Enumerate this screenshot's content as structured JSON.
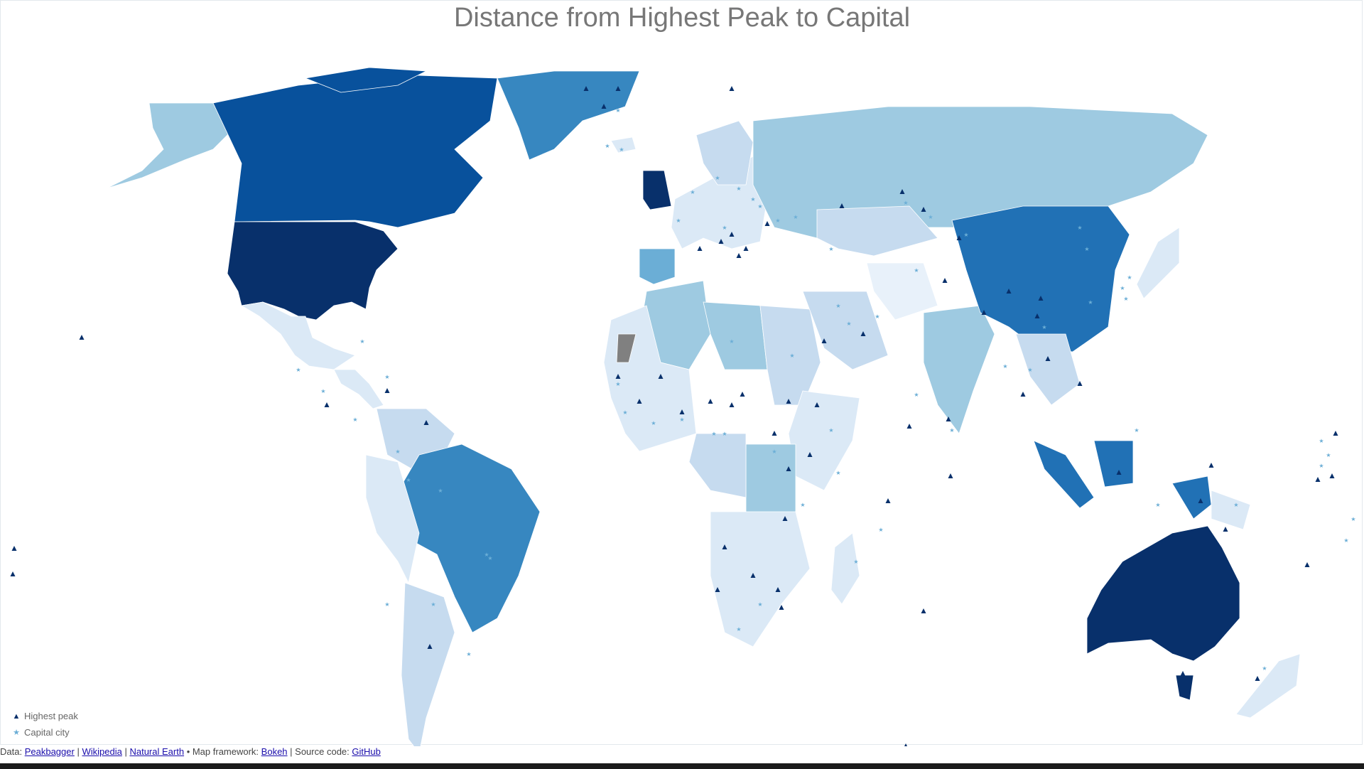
{
  "title": "Distance from Highest Peak to Capital",
  "legend": {
    "peak_label": "Highest peak",
    "capital_label": "Capital city",
    "peak_symbol": "▲",
    "capital_symbol": "★",
    "peak_color": "#08306b",
    "capital_color": "#6baed6"
  },
  "footer": {
    "prefix": "Data:",
    "link1": "Peakbagger",
    "sep1": "|",
    "link2": "Wikipedia",
    "sep2": "|",
    "link3": "Natural Earth",
    "mid": "• Map framework:",
    "link4": "Bokeh",
    "sep3": "| Source code:",
    "link5": "GitHub"
  },
  "colors": {
    "darkest": "#08306b",
    "dark": "#08519c",
    "mid_dark": "#2171b5",
    "mid": "#3787c0",
    "light_mid": "#6baed6",
    "light": "#9ecae1",
    "lighter": "#c6dbef",
    "lightest": "#dbe9f6",
    "palest": "#e8f1fa",
    "no_data": "#808080"
  }
}
